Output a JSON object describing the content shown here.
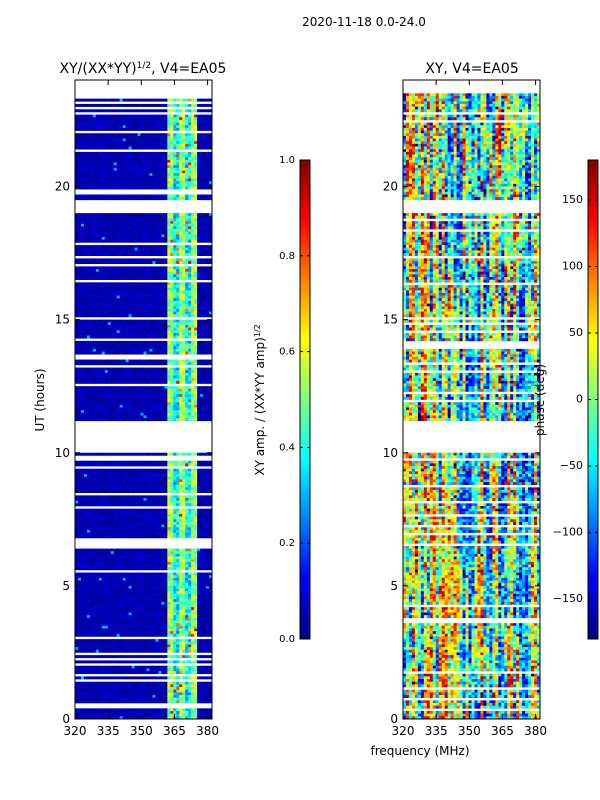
{
  "figure": {
    "suptitle": "2020-11-18 0.0-24.0",
    "shared_xlabel": "frequency (MHz)"
  },
  "chart_data": [
    {
      "type": "heatmap",
      "title_main": "XY/(XX*YY)",
      "title_exp": "1/2",
      "title_suffix": ", V4=EA05",
      "xlabel": "",
      "ylabel": "UT (hours)",
      "xlim": [
        320,
        382
      ],
      "ylim": [
        0,
        24
      ],
      "xticks": [
        320,
        335,
        350,
        365,
        380
      ],
      "yticks": [
        0,
        5,
        10,
        15,
        20
      ],
      "mode": "amplitude",
      "flagged_hour_ranges": [
        [
          10.0,
          11.2
        ],
        [
          19.0,
          19.5
        ]
      ],
      "bright_frequency_band_mhz": [
        362,
        375
      ],
      "colorbar": {
        "label_main": "XY amp. / (XX*YY amp)",
        "label_exp": "1/2",
        "range": [
          0.0,
          1.0
        ],
        "ticks": [
          "0.0",
          "0.2",
          "0.4",
          "0.6",
          "0.8",
          "1.0"
        ]
      }
    },
    {
      "type": "heatmap",
      "title_main": "XY, V4=EA05",
      "title_exp": "",
      "title_suffix": "",
      "xlabel": "frequency (MHz)",
      "ylabel": "",
      "xlim": [
        320,
        382
      ],
      "ylim": [
        0,
        24
      ],
      "xticks": [
        320,
        335,
        350,
        365,
        380
      ],
      "yticks": [
        0,
        5,
        10,
        15,
        20
      ],
      "mode": "phase",
      "flagged_hour_ranges": [
        [
          10.0,
          11.2
        ],
        [
          19.0,
          19.5
        ]
      ],
      "colorbar": {
        "label_main": "phase (deg)",
        "label_exp": "",
        "range": [
          -180,
          180
        ],
        "ticks": [
          "−150",
          "−100",
          "−50",
          "0",
          "50",
          "100",
          "150"
        ]
      }
    }
  ],
  "colors": {
    "jet_dark_blue": "#00007f",
    "jet_blue": "#0000ff",
    "jet_cyan": "#00ffff",
    "jet_yellow": "#ffff00",
    "jet_red": "#ff0000",
    "jet_dark_red": "#7f0000"
  }
}
